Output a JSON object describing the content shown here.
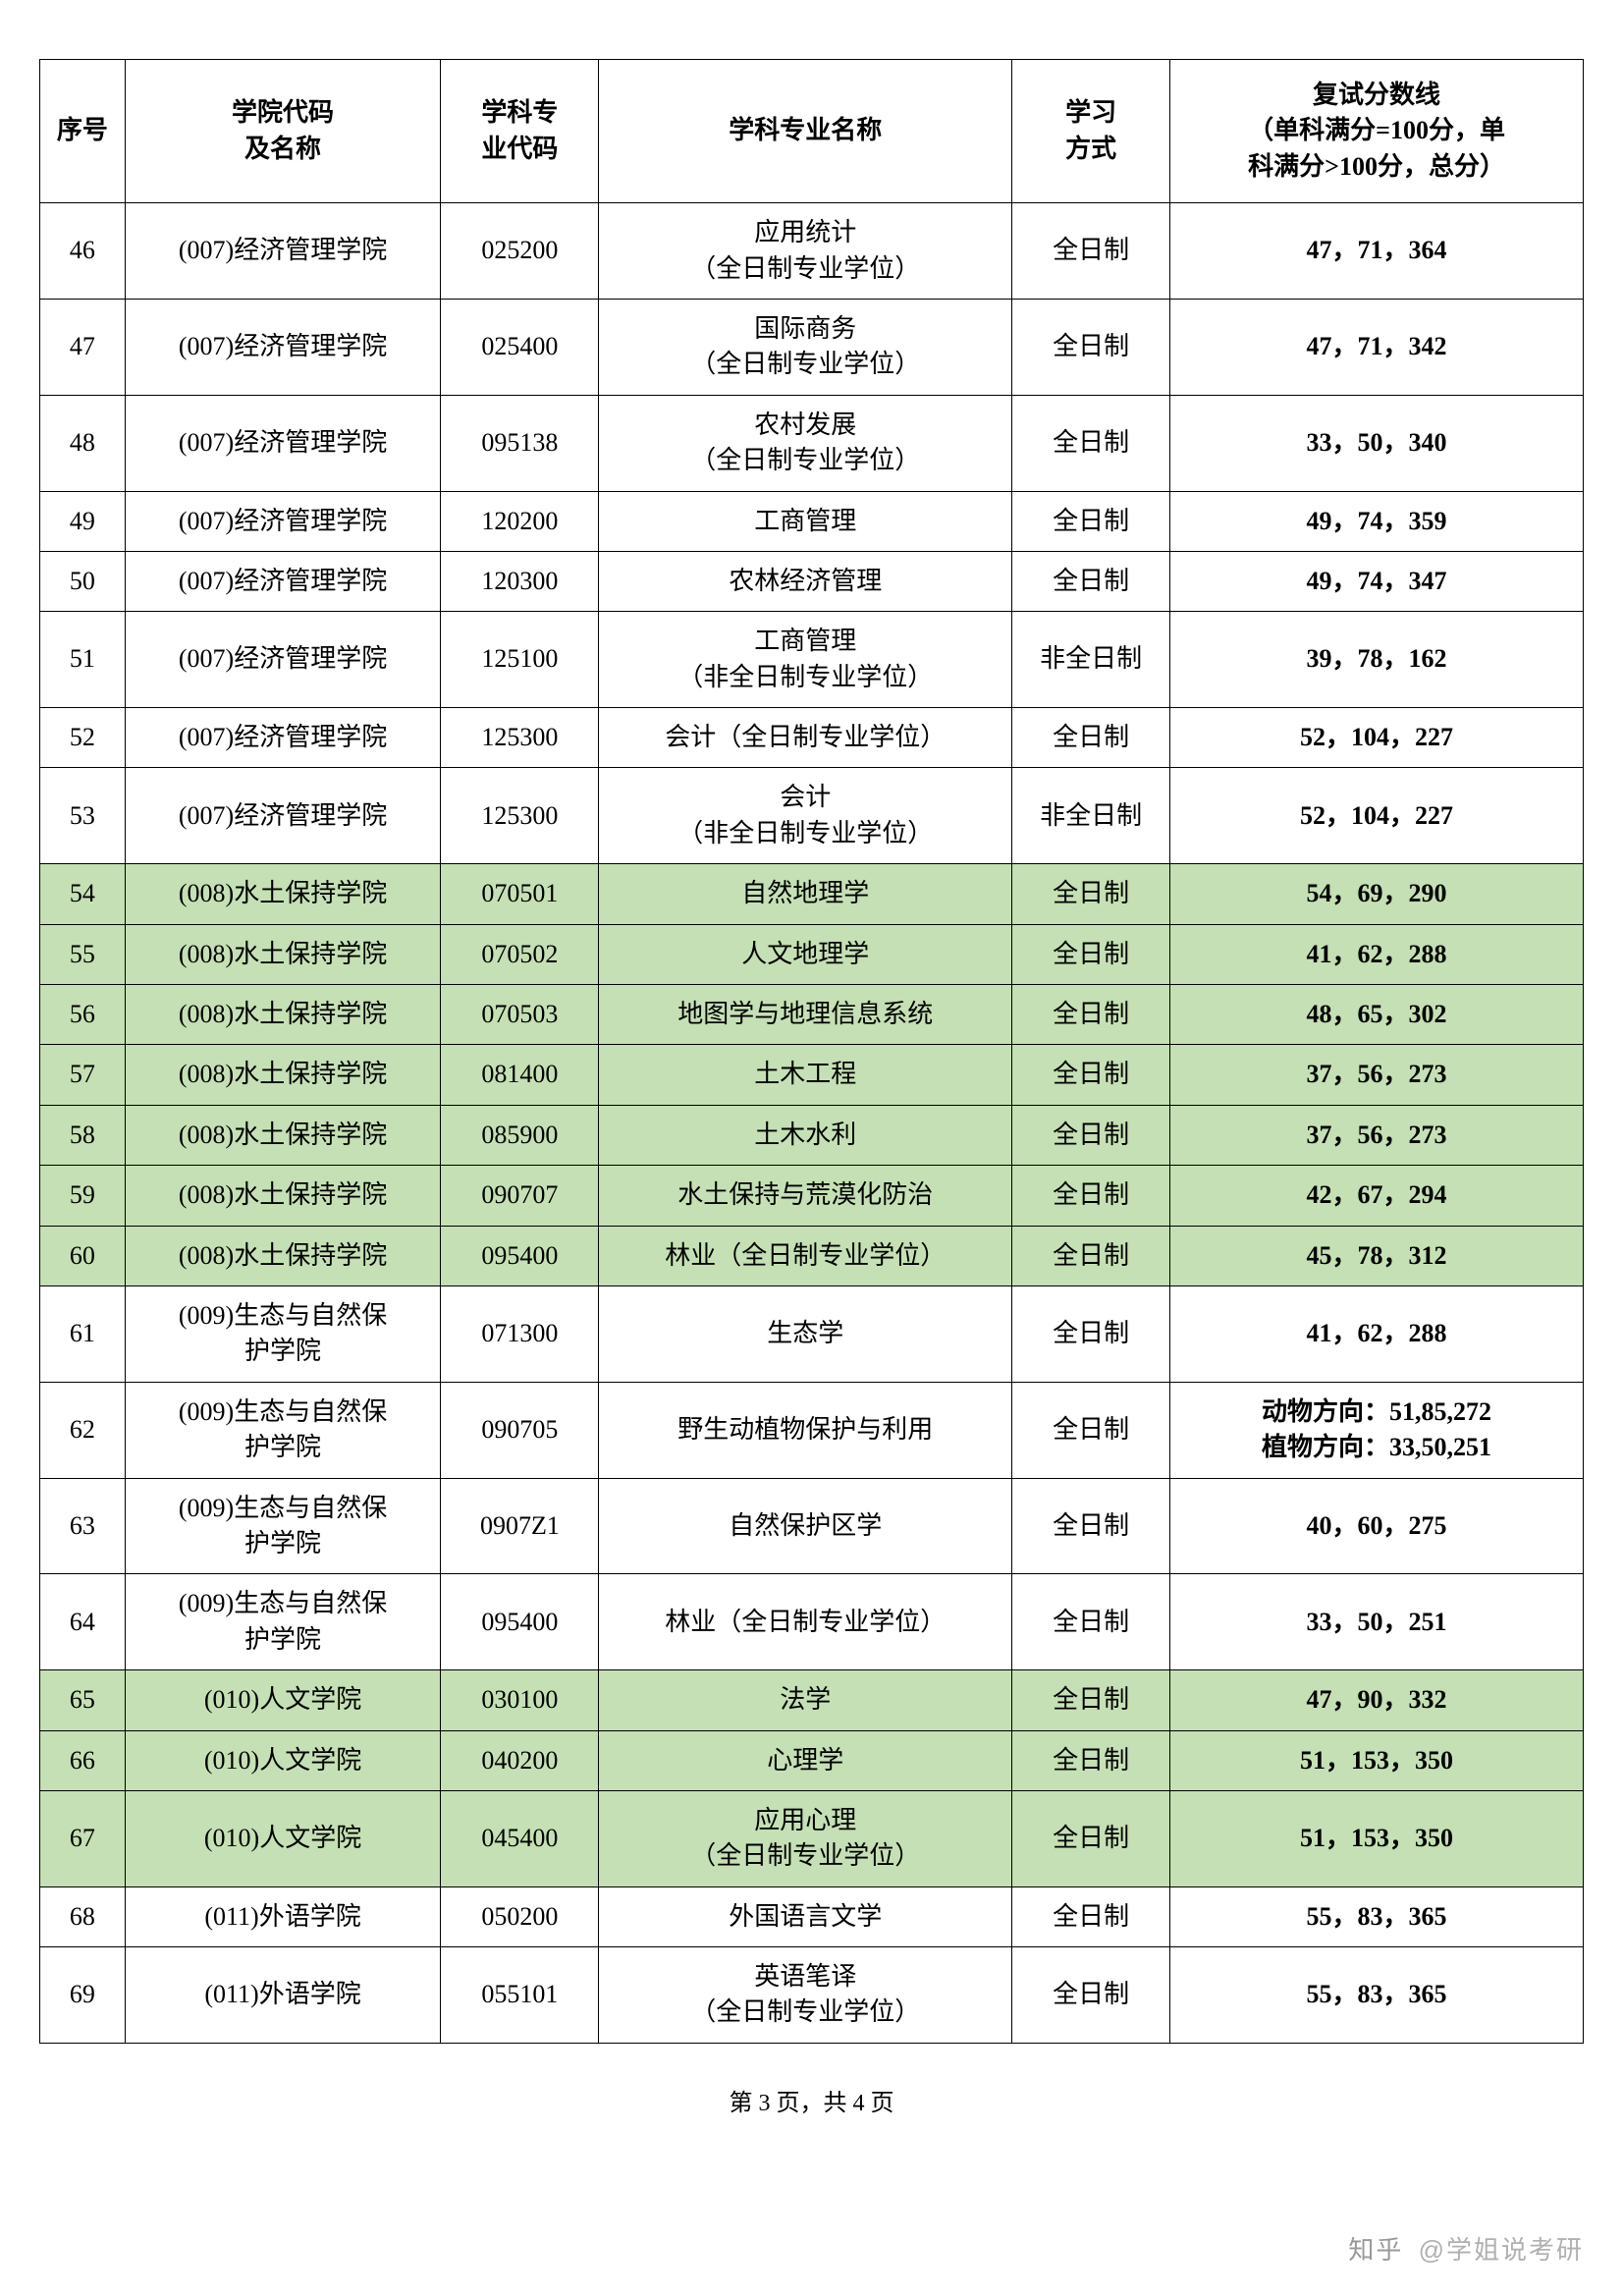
{
  "columns": {
    "seq": "序号",
    "college": "学院代码\n及名称",
    "code": "学科专\n业代码",
    "major": "学科专业名称",
    "mode": "学习\n方式",
    "score": "复试分数线\n（单科满分=100分，单\n科满分>100分，总分）"
  },
  "column_widths": {
    "seq": 70,
    "college": 260,
    "code": 130,
    "major": 340,
    "mode": 130,
    "score": 340
  },
  "rows": [
    {
      "seq": "46",
      "college": "(007)经济管理学院",
      "code": "025200",
      "major_l1": "应用统计",
      "major_l2": "（全日制专业学位）",
      "mode": "全日制",
      "score": "47，71，364",
      "hl": false
    },
    {
      "seq": "47",
      "college": "(007)经济管理学院",
      "code": "025400",
      "major_l1": "国际商务",
      "major_l2": "（全日制专业学位）",
      "mode": "全日制",
      "score": "47，71，342",
      "hl": false
    },
    {
      "seq": "48",
      "college": "(007)经济管理学院",
      "code": "095138",
      "major_l1": "农村发展",
      "major_l2": "（全日制专业学位）",
      "mode": "全日制",
      "score": "33，50，340",
      "hl": false
    },
    {
      "seq": "49",
      "college": "(007)经济管理学院",
      "code": "120200",
      "major_l1": "工商管理",
      "major_l2": "",
      "mode": "全日制",
      "score": "49，74，359",
      "hl": false
    },
    {
      "seq": "50",
      "college": "(007)经济管理学院",
      "code": "120300",
      "major_l1": "农林经济管理",
      "major_l2": "",
      "mode": "全日制",
      "score": "49，74，347",
      "hl": false
    },
    {
      "seq": "51",
      "college": "(007)经济管理学院",
      "code": "125100",
      "major_l1": "工商管理",
      "major_l2": "（非全日制专业学位）",
      "mode": "非全日制",
      "score": "39，78，162",
      "hl": false
    },
    {
      "seq": "52",
      "college": "(007)经济管理学院",
      "code": "125300",
      "major_l1": "会计（全日制专业学位）",
      "major_l2": "",
      "mode": "全日制",
      "score": "52，104，227",
      "hl": false
    },
    {
      "seq": "53",
      "college": "(007)经济管理学院",
      "code": "125300",
      "major_l1": "会计",
      "major_l2": "（非全日制专业学位）",
      "mode": "非全日制",
      "score": "52，104，227",
      "hl": false
    },
    {
      "seq": "54",
      "college": "(008)水土保持学院",
      "code": "070501",
      "major_l1": "自然地理学",
      "major_l2": "",
      "mode": "全日制",
      "score": "54，69，290",
      "hl": true
    },
    {
      "seq": "55",
      "college": "(008)水土保持学院",
      "code": "070502",
      "major_l1": "人文地理学",
      "major_l2": "",
      "mode": "全日制",
      "score": "41，62，288",
      "hl": true
    },
    {
      "seq": "56",
      "college": "(008)水土保持学院",
      "code": "070503",
      "major_l1": "地图学与地理信息系统",
      "major_l2": "",
      "mode": "全日制",
      "score": "48，65，302",
      "hl": true
    },
    {
      "seq": "57",
      "college": "(008)水土保持学院",
      "code": "081400",
      "major_l1": "土木工程",
      "major_l2": "",
      "mode": "全日制",
      "score": "37，56，273",
      "hl": true
    },
    {
      "seq": "58",
      "college": "(008)水土保持学院",
      "code": "085900",
      "major_l1": "土木水利",
      "major_l2": "",
      "mode": "全日制",
      "score": "37，56，273",
      "hl": true
    },
    {
      "seq": "59",
      "college": "(008)水土保持学院",
      "code": "090707",
      "major_l1": "水土保持与荒漠化防治",
      "major_l2": "",
      "mode": "全日制",
      "score": "42，67，294",
      "hl": true
    },
    {
      "seq": "60",
      "college": "(008)水土保持学院",
      "code": "095400",
      "major_l1": "林业（全日制专业学位）",
      "major_l2": "",
      "mode": "全日制",
      "score": "45，78，312",
      "hl": true
    },
    {
      "seq": "61",
      "college": "(009)生态与自然保\n护学院",
      "code": "071300",
      "major_l1": "生态学",
      "major_l2": "",
      "mode": "全日制",
      "score": "41，62，288",
      "hl": false
    },
    {
      "seq": "62",
      "college": "(009)生态与自然保\n护学院",
      "code": "090705",
      "major_l1": "野生动植物保护与利用",
      "major_l2": "",
      "mode": "全日制",
      "score": "动物方向：51,85,272\n植物方向：33,50,251",
      "hl": false
    },
    {
      "seq": "63",
      "college": "(009)生态与自然保\n护学院",
      "code": "0907Z1",
      "major_l1": "自然保护区学",
      "major_l2": "",
      "mode": "全日制",
      "score": "40，60，275",
      "hl": false
    },
    {
      "seq": "64",
      "college": "(009)生态与自然保\n护学院",
      "code": "095400",
      "major_l1": "林业（全日制专业学位）",
      "major_l2": "",
      "mode": "全日制",
      "score": "33，50，251",
      "hl": false
    },
    {
      "seq": "65",
      "college": "(010)人文学院",
      "code": "030100",
      "major_l1": "法学",
      "major_l2": "",
      "mode": "全日制",
      "score": "47，90，332",
      "hl": true
    },
    {
      "seq": "66",
      "college": "(010)人文学院",
      "code": "040200",
      "major_l1": "心理学",
      "major_l2": "",
      "mode": "全日制",
      "score": "51，153，350",
      "hl": true
    },
    {
      "seq": "67",
      "college": "(010)人文学院",
      "code": "045400",
      "major_l1": "应用心理",
      "major_l2": "（全日制专业学位）",
      "mode": "全日制",
      "score": "51，153，350",
      "hl": true
    },
    {
      "seq": "68",
      "college": "(011)外语学院",
      "code": "050200",
      "major_l1": "外国语言文学",
      "major_l2": "",
      "mode": "全日制",
      "score": "55，83，365",
      "hl": false
    },
    {
      "seq": "69",
      "college": "(011)外语学院",
      "code": "055101",
      "major_l1": "英语笔译",
      "major_l2": "（全日制专业学位）",
      "mode": "全日制",
      "score": "55，83，365",
      "hl": false
    }
  ],
  "footer": "第 3 页，共 4 页",
  "watermark_prefix": "知乎",
  "watermark_text": "@学姐说考研",
  "colors": {
    "highlight_bg": "#c5e0b4",
    "border": "#000000",
    "text": "#000000",
    "watermark": "#b0b0b0"
  }
}
